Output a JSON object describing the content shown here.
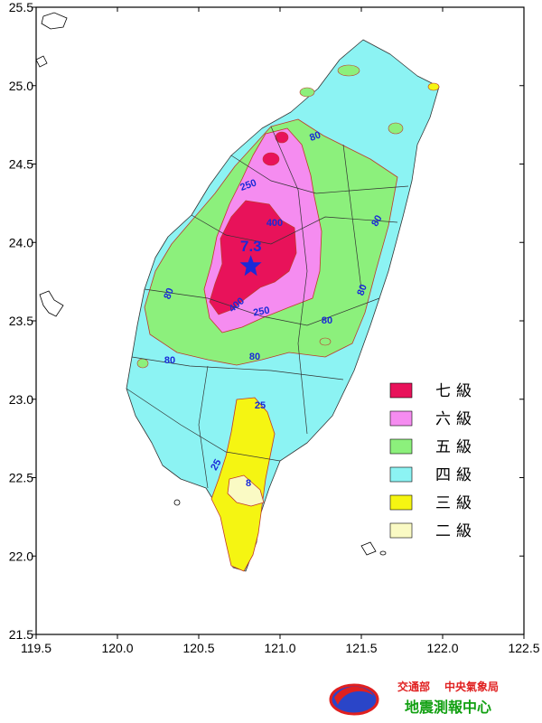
{
  "map": {
    "lon_min": 119.5,
    "lon_max": 122.5,
    "lat_min": 21.5,
    "lat_max": 25.5,
    "x_ticks": [
      "119.5",
      "120.0",
      "120.5",
      "121.0",
      "121.5",
      "122.0",
      "122.5"
    ],
    "y_ticks": [
      "25.5",
      "25.0",
      "24.5",
      "24.0",
      "23.5",
      "23.0",
      "22.5",
      "22.0",
      "21.5"
    ]
  },
  "epicenter": {
    "lon": 120.82,
    "lat": 23.85,
    "magnitude": "7.3"
  },
  "contour_labels": [
    {
      "text": "80"
    },
    {
      "text": "250"
    },
    {
      "text": "400"
    },
    {
      "text": "80"
    },
    {
      "text": "80"
    },
    {
      "text": "400"
    },
    {
      "text": "250"
    },
    {
      "text": "80"
    },
    {
      "text": "80"
    },
    {
      "text": "80"
    },
    {
      "text": "80"
    },
    {
      "text": "25"
    },
    {
      "text": "25"
    },
    {
      "text": "8"
    }
  ],
  "legend": [
    {
      "label": "七級",
      "color": "#e8125a"
    },
    {
      "label": "六級",
      "color": "#f58cf0"
    },
    {
      "label": "五級",
      "color": "#8cf07c"
    },
    {
      "label": "四級",
      "color": "#8cf3f3"
    },
    {
      "label": "三級",
      "color": "#f5f512"
    },
    {
      "label": "二級",
      "color": "#fafac4"
    }
  ],
  "logo": {
    "ministry": "交通部",
    "bureau": "中央氣象局",
    "center": "地震測報中心"
  }
}
